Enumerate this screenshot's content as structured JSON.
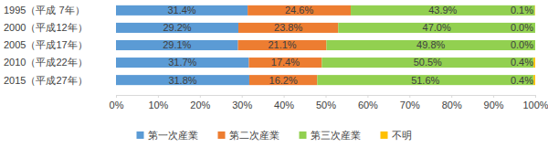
{
  "chart_data": {
    "type": "bar",
    "orientation": "horizontal",
    "stacked": true,
    "data_labels": true,
    "legend": "bottom",
    "grid": false,
    "categories": [
      "1995（平成 7年）",
      "2000（平成12年）",
      "2005（平成17年）",
      "2010（平成22年）",
      "2015（平成27年）"
    ],
    "series": [
      {
        "name": "第一次産業",
        "color": "#5b9bd5",
        "values": [
          31.4,
          29.2,
          29.1,
          31.7,
          31.8
        ],
        "value_labels": [
          "31.4%",
          "29.2%",
          "29.1%",
          "31.7%",
          "31.8%"
        ]
      },
      {
        "name": "第二次産業",
        "color": "#ed7d31",
        "values": [
          24.6,
          23.8,
          21.1,
          17.4,
          16.2
        ],
        "value_labels": [
          "24.6%",
          "23.8%",
          "21.1%",
          "17.4%",
          "16.2%"
        ]
      },
      {
        "name": "第三次産業",
        "color": "#92d050",
        "values": [
          43.9,
          47.0,
          49.8,
          50.5,
          51.6
        ],
        "value_labels": [
          "43.9%",
          "47.0%",
          "49.8%",
          "50.5%",
          "51.6%"
        ]
      },
      {
        "name": "不明",
        "color": "#ffc000",
        "values": [
          0.1,
          0.0,
          0.0,
          0.4,
          0.4
        ],
        "value_labels": [
          "0.1%",
          "0.0%",
          "0.0%",
          "0.4%",
          "0.4%"
        ]
      }
    ],
    "xlim": [
      0,
      100
    ],
    "xticks": [
      {
        "value": 0,
        "label": "0%"
      },
      {
        "value": 10,
        "label": "10%"
      },
      {
        "value": 20,
        "label": "20%"
      },
      {
        "value": 30,
        "label": "30%"
      },
      {
        "value": 40,
        "label": "40%"
      },
      {
        "value": 50,
        "label": "50%"
      },
      {
        "value": 60,
        "label": "60%"
      },
      {
        "value": 70,
        "label": "70%"
      },
      {
        "value": 80,
        "label": "80%"
      },
      {
        "value": 90,
        "label": "90%"
      },
      {
        "value": 100,
        "label": "100%"
      }
    ]
  }
}
